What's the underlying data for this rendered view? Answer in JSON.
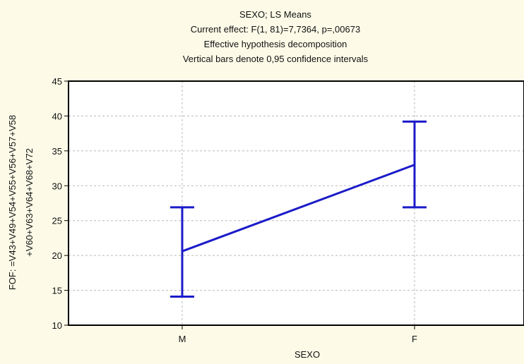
{
  "chart_data": {
    "type": "line",
    "title_lines": [
      "SEXO; LS Means",
      "Current effect: F(1, 81)=7,7364, p=,00673",
      "Effective hypothesis decomposition",
      "Vertical bars denote 0,95 confidence intervals"
    ],
    "xlabel": "SEXO",
    "ylabel_lines": [
      "FOF: =V43+V49+V54+V55+V56+V57+V58",
      "+V60+V63+V64+V68+V72"
    ],
    "categories": [
      "M",
      "F"
    ],
    "series": [
      {
        "values": [
          20.6,
          33.0
        ],
        "ci_lower": [
          14.1,
          26.9
        ],
        "ci_upper": [
          26.9,
          39.2
        ]
      }
    ],
    "ylim": [
      10,
      45
    ],
    "yticks": [
      10,
      15,
      20,
      25,
      30,
      35,
      40,
      45
    ],
    "grid": true,
    "legend": "none",
    "series_color": "#1b1bc9",
    "background_color": "#fdfbe8"
  }
}
